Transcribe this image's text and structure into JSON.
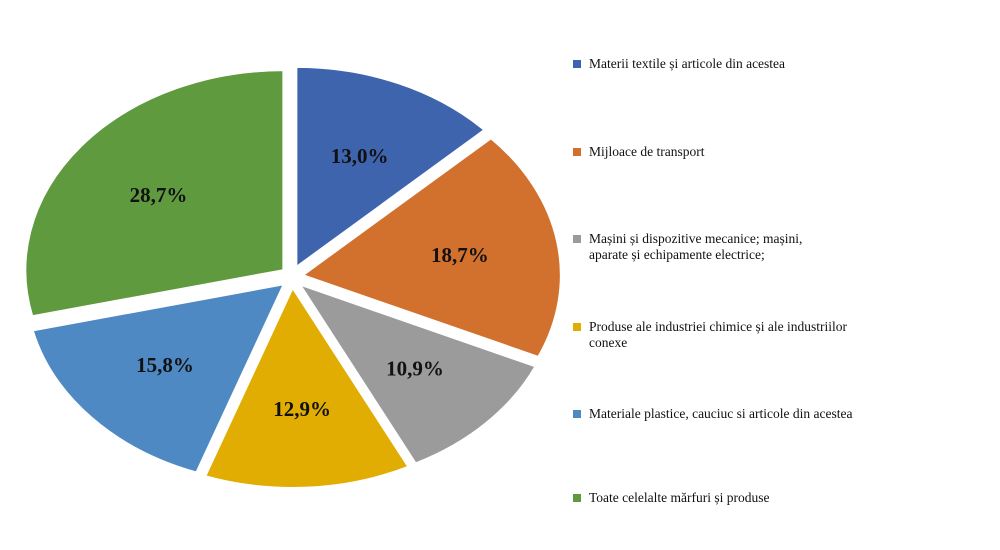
{
  "chart_data": {
    "type": "pie",
    "title": "",
    "exploded": true,
    "start": "top",
    "direction": "clockwise",
    "legend_position": "right",
    "slices": [
      {
        "label": "Materii textile și articole din acestea",
        "value": 13.0,
        "display": "13,0%",
        "color": "#3E64AE"
      },
      {
        "label": "Mijloace de transport",
        "value": 18.7,
        "display": "18,7%",
        "color": "#D2712D"
      },
      {
        "label": "Mașini și dispozitive mecanice; mașini, aparate și echipamente electrice;",
        "value": 10.9,
        "display": "10,9%",
        "color": "#9B9B9B"
      },
      {
        "label": "Produse ale industriei chimice și ale industriilor conexe",
        "value": 12.9,
        "display": "12,9%",
        "color": "#E1AD02"
      },
      {
        "label": "Materiale plastice, cauciuc si articole din acestea",
        "value": 15.8,
        "display": "15,8%",
        "color": "#4F89C4"
      },
      {
        "label": "Toate celelalte mărfuri și produse",
        "value": 28.7,
        "display": "28,7%",
        "color": "#5F9A3F"
      }
    ]
  }
}
